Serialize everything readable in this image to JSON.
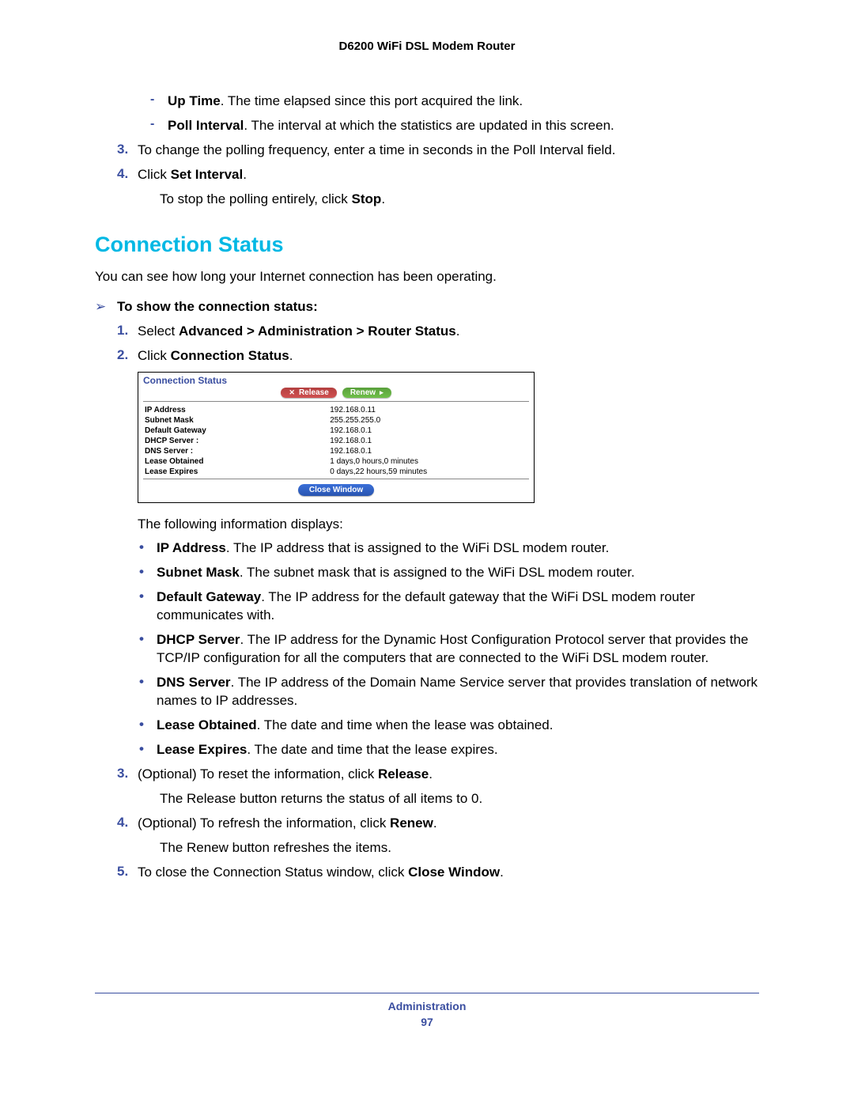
{
  "header": {
    "title": "D6200 WiFi DSL Modem Router"
  },
  "dash_items": [
    {
      "bold": "Up Time",
      "rest": ". The time elapsed since this port acquired the link."
    },
    {
      "bold": "Poll Interval",
      "rest": ". The interval at which the statistics are updated in this screen."
    }
  ],
  "top_steps": [
    {
      "n": "3.",
      "text": "To change the polling frequency, enter a time in seconds in the Poll Interval field."
    },
    {
      "n": "4.",
      "pre": "Click ",
      "bold": "Set Interval",
      "post": ".",
      "after_pre": "To stop the polling entirely, click ",
      "after_bold": "Stop",
      "after_post": "."
    }
  ],
  "heading": "Connection Status",
  "intro": "You can see how long your Internet connection has been operating.",
  "arrow": "To show the connection status:",
  "mid_steps": [
    {
      "n": "1.",
      "pre": "Select ",
      "bold": "Advanced > Administration > Router Status",
      "post": "."
    },
    {
      "n": "2.",
      "pre": "Click ",
      "bold": "Connection Status",
      "post": "."
    }
  ],
  "screenshot": {
    "title": "Connection Status",
    "release": "Release",
    "renew": "Renew",
    "rows": [
      {
        "k": "IP Address",
        "v": "192.168.0.11"
      },
      {
        "k": "Subnet Mask",
        "v": "255.255.255.0"
      },
      {
        "k": "Default Gateway",
        "v": "192.168.0.1"
      },
      {
        "k": "DHCP Server :",
        "v": "192.168.0.1"
      },
      {
        "k": "DNS Server :",
        "v": "192.168.0.1"
      },
      {
        "k": "Lease Obtained",
        "v": "1 days,0 hours,0 minutes"
      },
      {
        "k": "Lease Expires",
        "v": "0 days,22 hours,59 minutes"
      }
    ],
    "close": "Close Window"
  },
  "after_ss": "The following information displays:",
  "bullets": [
    {
      "bold": "IP Address",
      "rest": ". The IP address that is assigned to the WiFi DSL modem router."
    },
    {
      "bold": "Subnet Mask",
      "rest": ". The subnet mask that is assigned to the WiFi DSL modem router."
    },
    {
      "bold": "Default Gateway",
      "rest": ". The IP address for the default gateway that the WiFi DSL modem router communicates with."
    },
    {
      "bold": "DHCP Server",
      "rest": ". The IP address for the Dynamic Host Configuration Protocol server that provides the TCP/IP configuration for all the computers that are connected to the WiFi DSL modem router."
    },
    {
      "bold": "DNS Server",
      "rest": ". The IP address of the Domain Name Service server that provides translation of network names to IP addresses."
    },
    {
      "bold": "Lease Obtained",
      "rest": ". The date and time when the lease was obtained."
    },
    {
      "bold": "Lease Expires",
      "rest": ". The date and time that the lease expires."
    }
  ],
  "end_steps": [
    {
      "n": "3.",
      "pre": "(Optional) To reset the information, click ",
      "bold": "Release",
      "post": ".",
      "after": "The Release button returns the status of all items to 0."
    },
    {
      "n": "4.",
      "pre": "(Optional) To refresh the information, click ",
      "bold": "Renew",
      "post": ".",
      "after": "The Renew button refreshes the items."
    },
    {
      "n": "5.",
      "pre": "To close the Connection Status window, click ",
      "bold": "Close Window",
      "post": "."
    }
  ],
  "footer": {
    "section": "Administration",
    "page": "97"
  }
}
